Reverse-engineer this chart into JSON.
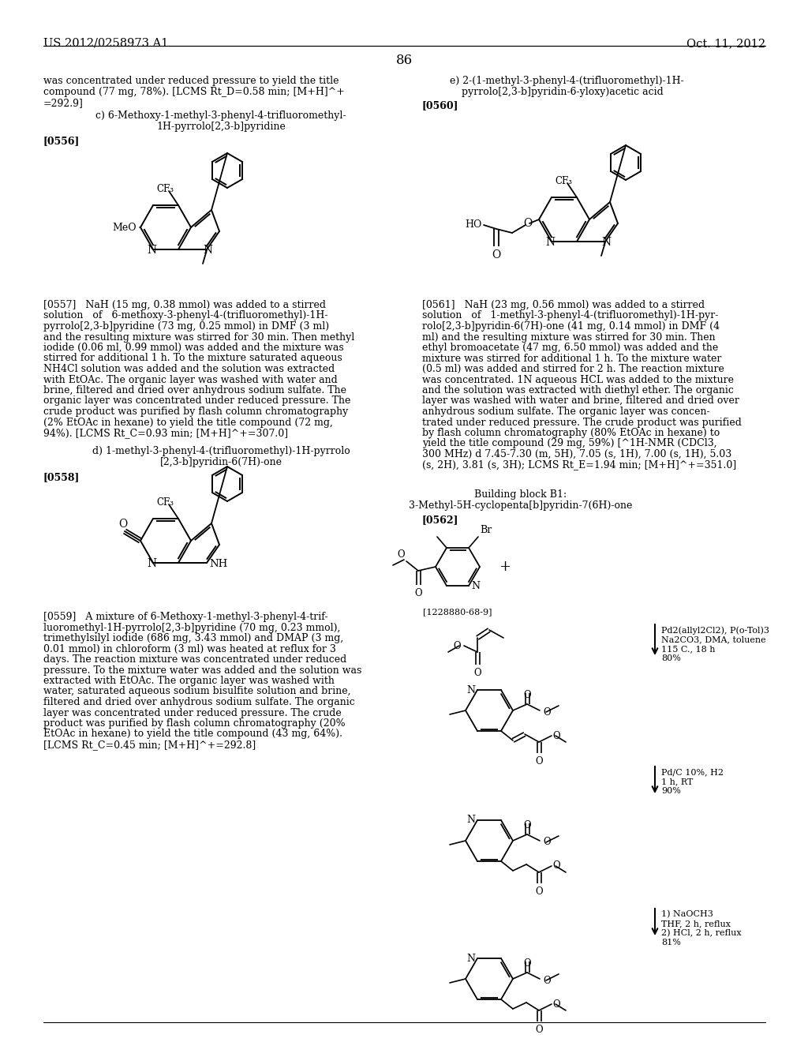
{
  "page_number": "86",
  "header_left": "US 2012/0258973 A1",
  "header_right": "Oct. 11, 2012",
  "bg_color": "#ffffff",
  "top_left_text": "was concentrated under reduced pressure to yield the title\ncompound (77 mg, 78%). [LCMS Rt_D=0.58 min; [M+H]^+\n=292.9]",
  "sec_c_title1": "c) 6-Methoxy-1-methyl-3-phenyl-4-trifluoromethyl-",
  "sec_c_title2": "1H-pyrrolo[2,3-b]pyridine",
  "sec_c_ref": "[0556]",
  "sec_c_body": "[0557]   NaH (15 mg, 0.38 mmol) was added to a stirred\nsolution   of   6-methoxy-3-phenyl-4-(trifluoromethyl)-1H-\npyrrolo[2,3-b]pyridine (73 mg, 0.25 mmol) in DMF (3 ml)\nand the resulting mixture was stirred for 30 min. Then methyl\niodide (0.06 ml, 0.99 mmol) was added and the mixture was\nstirred for additional 1 h. To the mixture saturated aqueous\nNH4Cl solution was added and the solution was extracted\nwith EtOAc. The organic layer was washed with water and\nbrine, filtered and dried over anhydrous sodium sulfate. The\norganic layer was concentrated under reduced pressure. The\ncrude product was purified by flash column chromatography\n(2% EtOAc in hexane) to yield the title compound (72 mg,\n94%). [LCMS Rt_C=0.93 min; [M+H]^+=307.0]",
  "sec_d_title1": "d) 1-methyl-3-phenyl-4-(trifluoromethyl)-1H-pyrrolo",
  "sec_d_title2": "[2,3-b]pyridin-6(7H)-one",
  "sec_d_ref": "[0558]",
  "sec_d_body": "[0559]   A mixture of 6-Methoxy-1-methyl-3-phenyl-4-trif-\nluoromethyl-1H-pyrrolo[2,3-b]pyridine (70 mg, 0.23 mmol),\ntrimethylsilyl iodide (686 mg, 3.43 mmol) and DMAP (3 mg,\n0.01 mmol) in chloroform (3 ml) was heated at reflux for 3\ndays. The reaction mixture was concentrated under reduced\npressure. To the mixture water was added and the solution was\nextracted with EtOAc. The organic layer was washed with\nwater, saturated aqueous sodium bisulfite solution and brine,\nfiltered and dried over anhydrous sodium sulfate. The organic\nlayer was concentrated under reduced pressure. The crude\nproduct was purified by flash column chromatography (20%\nEtOAc in hexane) to yield the title compound (43 mg, 64%).\n[LCMS Rt_C=0.45 min; [M+H]^+=292.8]",
  "sec_e_title1": "e) 2-(1-methyl-3-phenyl-4-(trifluoromethyl)-1H-",
  "sec_e_title2": "pyrrolo[2,3-b]pyridin-6-yloxy)acetic acid",
  "sec_e_ref": "[0560]",
  "sec_e_body": "[0561]   NaH (23 mg, 0.56 mmol) was added to a stirred\nsolution   of   1-methyl-3-phenyl-4-(trifluoromethyl)-1H-pyr-\nrolo[2,3-b]pyridin-6(7H)-one (41 mg, 0.14 mmol) in DMF (4\nml) and the resulting mixture was stirred for 30 min. Then\nethyl bromoacetate (47 mg, 6.50 mmol) was added and the\nmixture was stirred for additional 1 h. To the mixture water\n(0.5 ml) was added and stirred for 2 h. The reaction mixture\nwas concentrated. 1N aqueous HCL was added to the mixture\nand the solution was extracted with diethyl ether. The organic\nlayer was washed with water and brine, filtered and dried over\nanhydrous sodium sulfate. The organic layer was concen-\ntrated under reduced pressure. The crude product was purified\nby flash column chromatography (80% EtOAc in hexane) to\nyield the title compound (29 mg, 59%) [^1H-NMR (CDCl3,\n300 MHz) d 7.45-7.30 (m, 5H), 7.05 (s, 1H), 7.00 (s, 1H), 5.03\n(s, 2H), 3.81 (s, 3H); LCMS Rt_E=1.94 min; [M+H]^+=351.0]",
  "bb_title": "Building block B1:",
  "bb_subtitle": "3-Methyl-5H-cyclopenta[b]pyridin-7(6H)-one",
  "bb_ref": "[0562]",
  "bb_cas": "[1228880-68-9]",
  "arrow1_text1": "Pd2(allyl2Cl2), P(o-Tol)3",
  "arrow1_text2": "Na2CO3, DMA, toluene",
  "arrow1_text3": "115 C., 18 h",
  "arrow1_yield": "80%",
  "arrow2_text1": "Pd/C 10%, H2",
  "arrow2_text2": "1 h, RT",
  "arrow2_yield": "90%",
  "arrow3_text1": "1) NaOCH3",
  "arrow3_text2": "THF, 2 h, reflux",
  "arrow3_text3": "2) HCl, 2 h, reflux",
  "arrow3_yield": "81%"
}
